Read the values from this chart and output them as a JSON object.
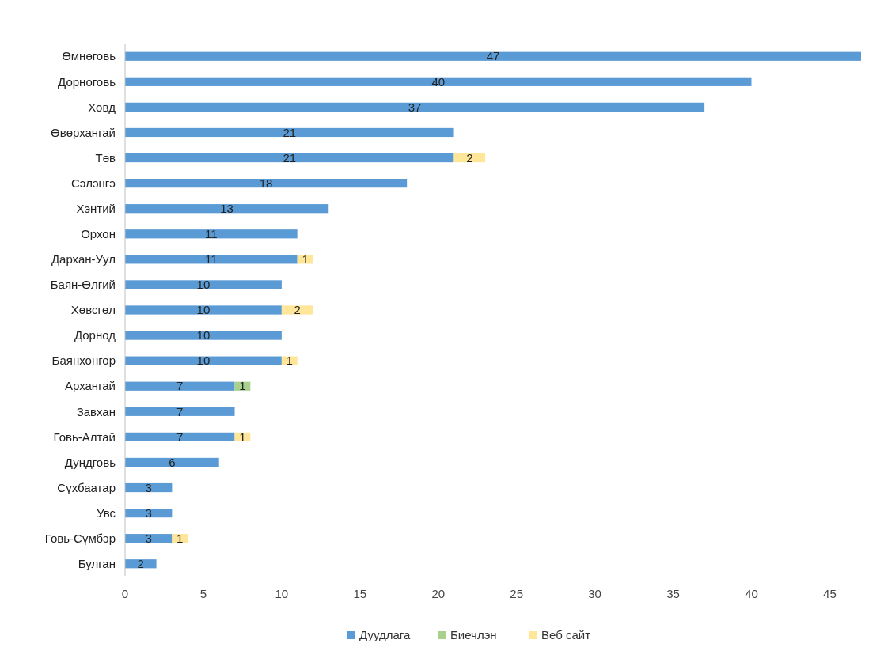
{
  "chart_data": {
    "type": "bar",
    "orientation": "horizontal",
    "stacked": true,
    "data_labels": true,
    "legend": "bottom",
    "grid": false,
    "categories": [
      "Өмнөговь",
      "Дорноговь",
      "Ховд",
      "Өвөрхангай",
      "Төв",
      "Сэлэнгэ",
      "Хэнтий",
      "Орхон",
      "Дархан-Уул",
      "Баян-Өлгий",
      "Хөвсгөл",
      "Дорнод",
      "Баянхонгор",
      "Архангай",
      "Завхан",
      "Говь-Алтай",
      "Дундговь",
      "Сүхбаатар",
      "Увс",
      "Говь-Сүмбэр",
      "Булган"
    ],
    "series": [
      {
        "name": "Дуудлага",
        "color": "#5b9bd5",
        "values": [
          47,
          40,
          37,
          21,
          21,
          18,
          13,
          11,
          11,
          10,
          10,
          10,
          10,
          7,
          7,
          7,
          6,
          3,
          3,
          3,
          2
        ]
      },
      {
        "name": "Биечлэн",
        "color": "#a9d18e",
        "values": [
          null,
          null,
          null,
          null,
          null,
          null,
          null,
          null,
          null,
          null,
          null,
          null,
          null,
          1,
          null,
          null,
          null,
          null,
          null,
          null,
          null
        ]
      },
      {
        "name": "Веб сайт",
        "color": "#ffe699",
        "values": [
          null,
          null,
          null,
          null,
          2,
          null,
          null,
          null,
          1,
          null,
          2,
          null,
          1,
          null,
          null,
          1,
          null,
          null,
          null,
          1,
          null
        ]
      }
    ],
    "xlim": [
      0,
      47
    ],
    "xticks": [
      0,
      5,
      10,
      15,
      20,
      25,
      30,
      35,
      40,
      45
    ]
  }
}
